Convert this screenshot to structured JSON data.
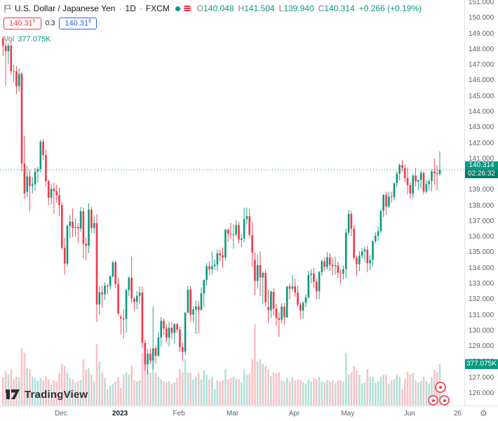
{
  "header": {
    "symbol_title": "U.S. Dollar / Japanese Yen",
    "sep": "·",
    "timeframe": "1D",
    "exchange": "FXCM",
    "ohlc": {
      "o_label": "O",
      "o": "140.048",
      "h_label": "H",
      "h": "141.504",
      "l_label": "L",
      "l": "139.940",
      "c_label": "C",
      "c": "140.314",
      "change": "+0.266 (+0.19%)"
    },
    "bid": {
      "value": "140.31",
      "sup": "5"
    },
    "spread": "0.3",
    "ask": {
      "value": "140.31",
      "sup": "8"
    },
    "vol_label": "Vol",
    "vol_value": "377.075K"
  },
  "price_scale": {
    "ticks": [
      "151.000",
      "150.000",
      "149.000",
      "148.000",
      "147.000",
      "146.000",
      "145.000",
      "144.000",
      "143.000",
      "142.000",
      "141.000",
      "140.000",
      "139.000",
      "138.000",
      "137.000",
      "136.000",
      "135.000",
      "134.000",
      "133.000",
      "132.000",
      "131.000",
      "130.000",
      "129.000",
      "128.000",
      "127.000",
      "126.000"
    ],
    "current_price_label": "140.314",
    "countdown": "02:26:32",
    "volume_label": "377.075K"
  },
  "time_scale": {
    "labels": [
      {
        "text": "Dec",
        "index": 22
      },
      {
        "text": "2023",
        "index": 44,
        "bold": true
      },
      {
        "text": "Feb",
        "index": 66
      },
      {
        "text": "Mar",
        "index": 86
      },
      {
        "text": "Apr",
        "index": 109
      },
      {
        "text": "May",
        "index": 129
      },
      {
        "text": "Jun",
        "index": 152
      },
      {
        "text": "26",
        "index": 170
      }
    ]
  },
  "watermark": {
    "logo_text": "TradingView"
  },
  "icons": {
    "gear": "⚙"
  },
  "colors": {
    "up": "#089981",
    "down": "#f23645",
    "bid": "#f23645",
    "ask": "#2962ff",
    "axis_text": "#5d606b"
  },
  "chart_data": {
    "type": "candlestick",
    "title": "U.S. Dollar / Japanese Yen",
    "interval": "1D",
    "exchange": "FXCM",
    "y_range": [
      126,
      151
    ],
    "y_step": 1,
    "last_bar": {
      "open": 140.048,
      "high": 141.504,
      "low": 139.94,
      "close": 140.314,
      "change": "+0.266 (+0.19%)",
      "volume_k": 377.075
    },
    "columns": [
      "open",
      "high",
      "low",
      "close",
      "volume_k"
    ],
    "candles": [
      [
        148.72,
        148.85,
        147.6,
        148.25,
        260
      ],
      [
        148.25,
        148.45,
        145.68,
        147.9,
        310
      ],
      [
        147.9,
        148.45,
        147.1,
        148.26,
        280
      ],
      [
        148.26,
        148.53,
        146.4,
        146.63,
        330
      ],
      [
        146.63,
        147.05,
        145.95,
        146.62,
        240
      ],
      [
        146.62,
        146.95,
        145.15,
        145.67,
        260
      ],
      [
        145.67,
        146.8,
        145.3,
        146.46,
        255
      ],
      [
        146.46,
        146.58,
        140.2,
        140.72,
        520
      ],
      [
        140.72,
        142.48,
        138.46,
        138.81,
        480
      ],
      [
        138.9,
        140.58,
        138.56,
        139.89,
        340
      ],
      [
        139.89,
        140.3,
        137.67,
        139.29,
        330
      ],
      [
        139.29,
        139.85,
        138.8,
        139.39,
        260
      ],
      [
        139.39,
        140.45,
        139.0,
        140.2,
        250
      ],
      [
        140.2,
        140.5,
        139.5,
        140.37,
        230
      ],
      [
        140.37,
        142.25,
        140.15,
        142.12,
        250
      ],
      [
        142.12,
        142.3,
        140.95,
        141.25,
        230
      ],
      [
        141.25,
        141.6,
        139.25,
        139.59,
        270
      ],
      [
        139.59,
        139.7,
        138.05,
        138.53,
        240
      ],
      [
        138.53,
        139.42,
        138.1,
        139.1,
        190
      ],
      [
        139.1,
        139.5,
        137.5,
        138.95,
        230
      ],
      [
        138.95,
        139.36,
        138.2,
        138.7,
        220
      ],
      [
        138.7,
        139.2,
        137.35,
        138.07,
        300
      ],
      [
        138.07,
        138.25,
        135.2,
        135.33,
        380
      ],
      [
        135.33,
        135.98,
        133.62,
        134.31,
        360
      ],
      [
        134.31,
        136.85,
        134.1,
        136.73,
        300
      ],
      [
        136.73,
        137.42,
        135.95,
        137.0,
        250
      ],
      [
        137.0,
        137.85,
        136.02,
        136.59,
        240
      ],
      [
        136.59,
        137.2,
        136.05,
        136.65,
        210
      ],
      [
        136.65,
        136.9,
        135.6,
        136.56,
        220
      ],
      [
        136.56,
        137.95,
        136.35,
        137.67,
        230
      ],
      [
        137.67,
        137.9,
        134.65,
        135.59,
        420
      ],
      [
        135.59,
        136.0,
        134.55,
        135.47,
        330
      ],
      [
        135.47,
        138.18,
        135.0,
        137.77,
        340
      ],
      [
        137.77,
        137.95,
        136.28,
        136.6,
        280
      ],
      [
        136.6,
        137.4,
        136.25,
        136.9,
        220
      ],
      [
        136.9,
        137.48,
        130.58,
        131.71,
        560
      ],
      [
        131.71,
        132.88,
        131.05,
        132.48,
        400
      ],
      [
        132.48,
        132.9,
        131.5,
        132.36,
        300
      ],
      [
        132.36,
        133.12,
        132.0,
        132.91,
        250
      ],
      [
        132.91,
        133.0,
        132.35,
        132.88,
        150
      ],
      [
        132.88,
        133.6,
        132.65,
        133.5,
        180
      ],
      [
        133.5,
        134.5,
        133.42,
        134.4,
        200
      ],
      [
        134.4,
        134.52,
        132.75,
        133.0,
        220
      ],
      [
        133.0,
        133.4,
        130.95,
        131.12,
        260
      ],
      [
        130.9,
        131.05,
        129.8,
        130.8,
        160
      ],
      [
        130.8,
        131.4,
        129.52,
        130.78,
        280
      ],
      [
        130.78,
        132.72,
        129.9,
        132.62,
        300
      ],
      [
        132.62,
        133.5,
        132.25,
        133.41,
        280
      ],
      [
        133.41,
        134.77,
        131.8,
        132.08,
        360
      ],
      [
        132.08,
        132.2,
        131.3,
        131.87,
        230
      ],
      [
        131.87,
        132.55,
        131.4,
        132.26,
        220
      ],
      [
        132.26,
        132.87,
        131.75,
        132.47,
        230
      ],
      [
        132.47,
        132.85,
        128.9,
        129.25,
        480
      ],
      [
        129.25,
        129.45,
        127.46,
        127.87,
        420
      ],
      [
        127.87,
        128.87,
        127.23,
        128.55,
        330
      ],
      [
        128.55,
        128.92,
        127.9,
        128.12,
        300
      ],
      [
        128.12,
        131.58,
        127.57,
        128.9,
        520
      ],
      [
        128.9,
        129.05,
        127.93,
        128.43,
        300
      ],
      [
        128.43,
        129.95,
        128.35,
        129.6,
        260
      ],
      [
        129.6,
        130.9,
        129.0,
        130.65,
        240
      ],
      [
        130.65,
        130.8,
        129.75,
        130.17,
        220
      ],
      [
        130.17,
        130.42,
        129.3,
        129.58,
        210
      ],
      [
        129.58,
        130.6,
        129.02,
        130.22,
        220
      ],
      [
        130.22,
        130.55,
        129.45,
        129.88,
        200
      ],
      [
        129.88,
        130.5,
        129.2,
        130.45,
        210
      ],
      [
        130.45,
        130.52,
        129.85,
        130.09,
        250
      ],
      [
        130.09,
        130.3,
        128.65,
        128.98,
        330
      ],
      [
        128.98,
        129.3,
        128.08,
        128.68,
        300
      ],
      [
        128.68,
        131.2,
        128.45,
        131.19,
        420
      ],
      [
        131.19,
        132.9,
        131.15,
        132.65,
        300
      ],
      [
        132.65,
        132.9,
        130.62,
        131.06,
        300
      ],
      [
        131.06,
        131.6,
        130.55,
        131.38,
        240
      ],
      [
        131.38,
        131.95,
        129.82,
        131.58,
        260
      ],
      [
        131.58,
        131.9,
        129.85,
        131.36,
        300
      ],
      [
        131.36,
        132.8,
        131.3,
        132.42,
        240
      ],
      [
        132.42,
        133.3,
        131.52,
        133.28,
        320
      ],
      [
        133.28,
        134.36,
        132.9,
        134.15,
        280
      ],
      [
        134.15,
        134.46,
        133.58,
        133.95,
        240
      ],
      [
        133.95,
        135.12,
        133.6,
        134.15,
        260
      ],
      [
        134.15,
        134.58,
        133.9,
        134.25,
        150
      ],
      [
        134.25,
        135.23,
        133.85,
        134.98,
        230
      ],
      [
        134.98,
        135.2,
        134.45,
        134.85,
        220
      ],
      [
        134.85,
        135.35,
        134.05,
        134.7,
        230
      ],
      [
        134.7,
        136.55,
        134.5,
        136.48,
        330
      ],
      [
        136.48,
        136.55,
        135.7,
        136.22,
        240
      ],
      [
        136.22,
        136.92,
        135.9,
        136.17,
        250
      ],
      [
        136.17,
        136.8,
        135.26,
        136.18,
        260
      ],
      [
        136.18,
        137.1,
        136.05,
        136.77,
        240
      ],
      [
        136.77,
        137.0,
        135.62,
        135.85,
        240
      ],
      [
        135.85,
        136.2,
        135.35,
        135.93,
        210
      ],
      [
        135.93,
        137.9,
        135.68,
        137.16,
        330
      ],
      [
        137.16,
        137.9,
        136.83,
        137.35,
        280
      ],
      [
        137.35,
        137.8,
        135.95,
        136.15,
        290
      ],
      [
        136.15,
        136.99,
        134.12,
        135.03,
        420
      ],
      [
        134.55,
        135.05,
        132.28,
        133.21,
        740
      ],
      [
        133.21,
        134.9,
        132.72,
        134.22,
        400
      ],
      [
        134.22,
        135.1,
        132.22,
        133.43,
        420
      ],
      [
        133.43,
        133.8,
        131.72,
        133.72,
        380
      ],
      [
        133.72,
        133.95,
        131.55,
        131.85,
        360
      ],
      [
        131.55,
        132.65,
        130.55,
        131.32,
        330
      ],
      [
        131.32,
        132.6,
        130.85,
        132.52,
        270
      ],
      [
        132.52,
        132.75,
        131.0,
        131.44,
        300
      ],
      [
        131.44,
        131.75,
        130.35,
        130.84,
        290
      ],
      [
        130.84,
        131.2,
        129.64,
        130.73,
        300
      ],
      [
        130.73,
        131.77,
        130.5,
        131.57,
        230
      ],
      [
        131.57,
        131.8,
        130.4,
        130.89,
        220
      ],
      [
        130.89,
        132.89,
        130.85,
        132.86,
        250
      ],
      [
        132.86,
        133.05,
        132.05,
        132.71,
        220
      ],
      [
        132.71,
        133.6,
        132.55,
        132.86,
        260
      ],
      [
        132.86,
        133.35,
        132.2,
        132.46,
        230
      ],
      [
        132.46,
        132.9,
        131.55,
        131.69,
        240
      ],
      [
        131.69,
        131.85,
        130.77,
        131.31,
        230
      ],
      [
        131.31,
        131.9,
        130.8,
        131.81,
        210
      ],
      [
        131.81,
        132.38,
        131.52,
        132.16,
        200
      ],
      [
        132.16,
        133.87,
        132.1,
        133.6,
        240
      ],
      [
        133.6,
        133.95,
        133.05,
        133.68,
        220
      ],
      [
        133.68,
        134.05,
        132.75,
        133.15,
        250
      ],
      [
        133.15,
        133.35,
        132.02,
        132.55,
        240
      ],
      [
        132.55,
        133.85,
        132.05,
        133.78,
        260
      ],
      [
        133.78,
        134.58,
        133.55,
        134.47,
        220
      ],
      [
        134.47,
        134.7,
        133.85,
        134.11,
        210
      ],
      [
        134.11,
        135.05,
        133.95,
        134.73,
        230
      ],
      [
        134.73,
        134.98,
        133.86,
        134.24,
        220
      ],
      [
        134.24,
        134.7,
        133.55,
        134.16,
        230
      ],
      [
        134.16,
        134.75,
        133.62,
        134.21,
        200
      ],
      [
        134.21,
        134.45,
        133.4,
        133.73,
        230
      ],
      [
        133.73,
        133.95,
        133.0,
        133.68,
        230
      ],
      [
        133.68,
        134.2,
        133.3,
        133.97,
        220
      ],
      [
        133.97,
        136.55,
        133.35,
        136.3,
        480
      ],
      [
        136.3,
        137.77,
        136.1,
        137.5,
        280
      ],
      [
        137.5,
        137.7,
        136.07,
        136.55,
        300
      ],
      [
        136.55,
        136.8,
        134.55,
        134.68,
        360
      ],
      [
        134.68,
        134.85,
        133.5,
        134.28,
        320
      ],
      [
        134.28,
        135.12,
        133.85,
        134.83,
        280
      ],
      [
        134.83,
        135.3,
        134.65,
        135.1,
        200
      ],
      [
        135.1,
        135.4,
        134.43,
        135.22,
        210
      ],
      [
        135.22,
        135.47,
        133.76,
        134.34,
        330
      ],
      [
        134.34,
        134.85,
        133.9,
        134.55,
        260
      ],
      [
        134.55,
        135.8,
        134.15,
        135.75,
        260
      ],
      [
        135.75,
        136.32,
        135.6,
        136.1,
        210
      ],
      [
        136.1,
        136.7,
        135.76,
        136.39,
        220
      ],
      [
        136.39,
        137.75,
        136.25,
        137.68,
        260
      ],
      [
        137.68,
        138.75,
        137.3,
        138.71,
        280
      ],
      [
        138.71,
        138.9,
        137.45,
        137.98,
        280
      ],
      [
        137.98,
        138.88,
        137.87,
        138.6,
        200
      ],
      [
        138.6,
        138.92,
        138.2,
        138.56,
        230
      ],
      [
        138.56,
        139.48,
        138.35,
        139.47,
        240
      ],
      [
        139.47,
        140.23,
        139.2,
        140.07,
        280
      ],
      [
        140.07,
        140.73,
        139.65,
        140.62,
        260
      ],
      [
        140.62,
        140.93,
        140.2,
        140.44,
        150
      ],
      [
        140.44,
        140.65,
        139.52,
        139.78,
        240
      ],
      [
        139.78,
        140.47,
        138.75,
        139.34,
        310
      ],
      [
        139.34,
        139.5,
        138.44,
        138.8,
        280
      ],
      [
        138.8,
        140.07,
        138.5,
        139.95,
        300
      ],
      [
        139.95,
        140.45,
        139.25,
        139.56,
        230
      ],
      [
        139.56,
        139.68,
        139.0,
        139.66,
        210
      ],
      [
        139.66,
        140.25,
        139.1,
        140.12,
        220
      ],
      [
        140.12,
        140.2,
        138.76,
        138.92,
        260
      ],
      [
        138.92,
        139.65,
        138.8,
        139.4,
        220
      ],
      [
        139.4,
        139.75,
        139.0,
        139.59,
        200
      ],
      [
        139.59,
        140.33,
        138.95,
        140.21,
        260
      ],
      [
        140.21,
        141.05,
        139.36,
        140.09,
        320
      ],
      [
        140.09,
        140.62,
        139.02,
        140.05,
        300
      ],
      [
        140.048,
        141.504,
        139.94,
        140.314,
        377.075
      ]
    ]
  }
}
